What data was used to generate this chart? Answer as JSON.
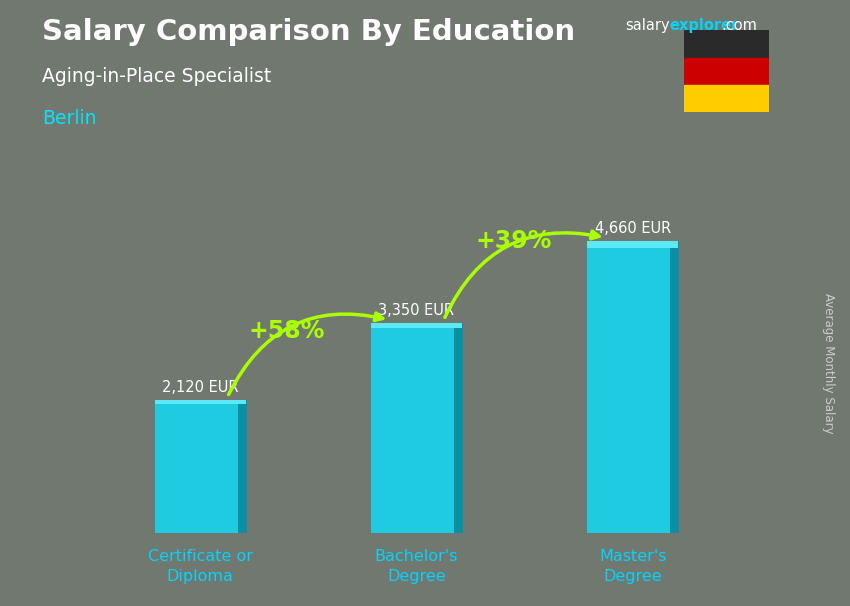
{
  "title": "Salary Comparison By Education",
  "subtitle": "Aging-in-Place Specialist",
  "city": "Berlin",
  "categories": [
    "Certificate or\nDiploma",
    "Bachelor's\nDegree",
    "Master's\nDegree"
  ],
  "values": [
    2120,
    3350,
    4660
  ],
  "value_labels": [
    "2,120 EUR",
    "3,350 EUR",
    "4,660 EUR"
  ],
  "pct_labels": [
    "+58%",
    "+39%"
  ],
  "bar_color_main": "#1ecbe1",
  "bar_color_right": "#0d8fa3",
  "bar_color_top": "#5de8f8",
  "title_color": "#ffffff",
  "subtitle_color": "#ffffff",
  "city_color": "#00e5ff",
  "value_color": "#ffffff",
  "pct_color": "#aaff00",
  "xtick_color": "#00d4ff",
  "ylabel": "Average Monthly Salary",
  "brand_salary": "salary",
  "brand_explorer": "explorer",
  "brand_com": ".com",
  "brand_color": "#00d4ff",
  "bg_color": "#707870",
  "ylim": [
    0,
    5600
  ],
  "bar_width": 0.42,
  "flag_black": "#2a2a2a",
  "flag_red": "#cc0000",
  "flag_gold": "#ffcc00",
  "ylabel_color": "#cccccc",
  "arrow_color": "#aaff00"
}
